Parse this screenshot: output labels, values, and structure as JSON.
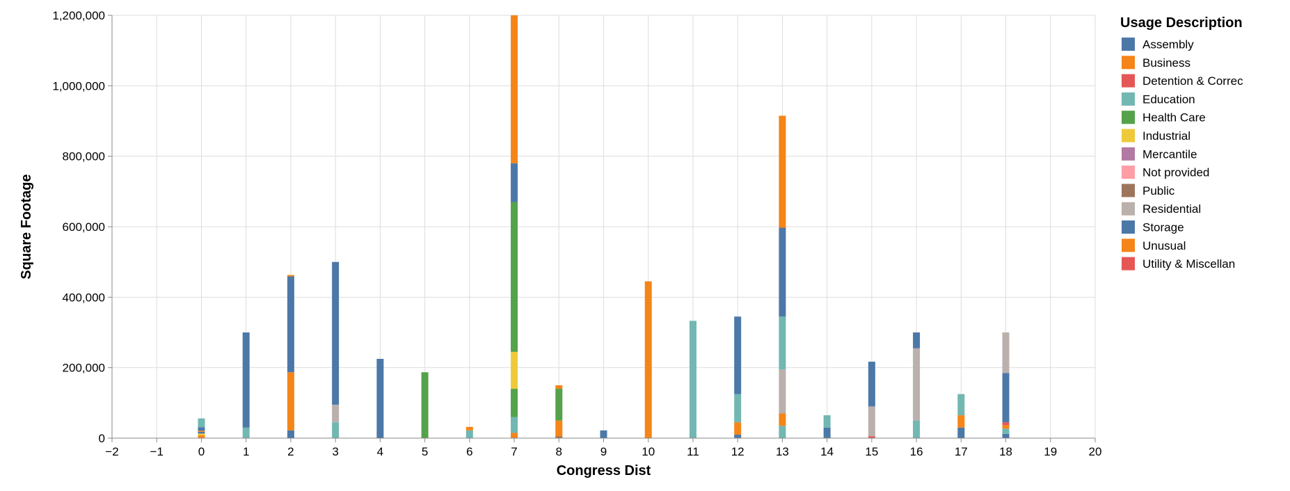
{
  "chart_data": {
    "type": "bar",
    "stacked": true,
    "title": "",
    "xlabel": "Congress Dist",
    "ylabel": "Square Footage",
    "xlim": [
      -2,
      20
    ],
    "ylim": [
      0,
      1200000
    ],
    "x_ticks": [
      -2,
      -1,
      0,
      1,
      2,
      3,
      4,
      5,
      6,
      7,
      8,
      9,
      10,
      11,
      12,
      13,
      14,
      15,
      16,
      17,
      18,
      19,
      20
    ],
    "x_tick_labels": [
      "−2",
      "−1",
      "0",
      "1",
      "2",
      "3",
      "4",
      "5",
      "6",
      "7",
      "8",
      "9",
      "10",
      "11",
      "12",
      "13",
      "14",
      "15",
      "16",
      "17",
      "18",
      "19",
      "20"
    ],
    "y_ticks": [
      0,
      200000,
      400000,
      600000,
      800000,
      1000000,
      1200000
    ],
    "y_tick_labels": [
      "0",
      "200,000",
      "400,000",
      "600,000",
      "800,000",
      "1,000,000",
      "1,200,000"
    ],
    "grid": true,
    "legend": {
      "title": "Usage Description",
      "position": "right",
      "entries": [
        {
          "name": "Assembly",
          "color": "#4c78a8"
        },
        {
          "name": "Business",
          "color": "#f58518"
        },
        {
          "name": "Detention & Correc",
          "color": "#e45756"
        },
        {
          "name": "Education",
          "color": "#72b7b2"
        },
        {
          "name": "Health Care",
          "color": "#54a24b"
        },
        {
          "name": "Industrial",
          "color": "#eeca3b"
        },
        {
          "name": "Mercantile",
          "color": "#b279a2"
        },
        {
          "name": "Not provided",
          "color": "#ff9da6"
        },
        {
          "name": "Public",
          "color": "#9d755d"
        },
        {
          "name": "Residential",
          "color": "#bab0ac"
        },
        {
          "name": "Storage",
          "color": "#4c78a8"
        },
        {
          "name": "Unusual",
          "color": "#f58518"
        },
        {
          "name": "Utility & Miscellan",
          "color": "#e45756"
        }
      ]
    },
    "bars": [
      {
        "x": 0,
        "segments": [
          {
            "category": "Business",
            "value": 8000
          },
          {
            "category": "Industrial",
            "value": 5000
          },
          {
            "category": "Assembly",
            "value": 5000
          },
          {
            "category": "Business",
            "value": 3000
          },
          {
            "category": "Storage",
            "value": 10000
          },
          {
            "category": "Education",
            "value": 25000
          }
        ]
      },
      {
        "x": 1,
        "segments": [
          {
            "category": "Education",
            "value": 30000
          },
          {
            "category": "Storage",
            "value": 270000
          }
        ]
      },
      {
        "x": 2,
        "segments": [
          {
            "category": "Storage",
            "value": 22000
          },
          {
            "category": "Business",
            "value": 165000
          },
          {
            "category": "Assembly",
            "value": 272000
          },
          {
            "category": "Unusual",
            "value": 4000
          }
        ]
      },
      {
        "x": 3,
        "segments": [
          {
            "category": "Education",
            "value": 45000
          },
          {
            "category": "Residential",
            "value": 50000
          },
          {
            "category": "Storage",
            "value": 405000
          }
        ]
      },
      {
        "x": 4,
        "segments": [
          {
            "category": "Storage",
            "value": 225000
          }
        ]
      },
      {
        "x": 5,
        "segments": [
          {
            "category": "Health Care",
            "value": 187000
          }
        ]
      },
      {
        "x": 6,
        "segments": [
          {
            "category": "Education",
            "value": 22000
          },
          {
            "category": "Unusual",
            "value": 10000
          }
        ]
      },
      {
        "x": 7,
        "segments": [
          {
            "category": "Business",
            "value": 15000
          },
          {
            "category": "Education",
            "value": 45000
          },
          {
            "category": "Health Care",
            "value": 80000
          },
          {
            "category": "Industrial",
            "value": 105000
          },
          {
            "category": "Health Care",
            "value": 425000
          },
          {
            "category": "Storage",
            "value": 110000
          },
          {
            "category": "Unusual",
            "value": 420000
          }
        ]
      },
      {
        "x": 8,
        "segments": [
          {
            "category": "Public",
            "value": 5000
          },
          {
            "category": "Business",
            "value": 45000
          },
          {
            "category": "Health Care",
            "value": 90000
          },
          {
            "category": "Unusual",
            "value": 10000
          }
        ]
      },
      {
        "x": 9,
        "segments": [
          {
            "category": "Storage",
            "value": 22000
          }
        ]
      },
      {
        "x": 10,
        "segments": [
          {
            "category": "Unusual",
            "value": 445000
          }
        ]
      },
      {
        "x": 11,
        "segments": [
          {
            "category": "Education",
            "value": 333000
          }
        ]
      },
      {
        "x": 12,
        "segments": [
          {
            "category": "Storage",
            "value": 10000
          },
          {
            "category": "Business",
            "value": 35000
          },
          {
            "category": "Education",
            "value": 80000
          },
          {
            "category": "Storage",
            "value": 220000
          }
        ]
      },
      {
        "x": 13,
        "segments": [
          {
            "category": "Education",
            "value": 35000
          },
          {
            "category": "Business",
            "value": 35000
          },
          {
            "category": "Residential",
            "value": 125000
          },
          {
            "category": "Education",
            "value": 150000
          },
          {
            "category": "Storage",
            "value": 252000
          },
          {
            "category": "Unusual",
            "value": 318000
          }
        ]
      },
      {
        "x": 14,
        "segments": [
          {
            "category": "Storage",
            "value": 30000
          },
          {
            "category": "Education",
            "value": 35000
          }
        ]
      },
      {
        "x": 15,
        "segments": [
          {
            "category": "Detention & Correc",
            "value": 5000
          },
          {
            "category": "Residential",
            "value": 85000
          },
          {
            "category": "Storage",
            "value": 127000
          }
        ]
      },
      {
        "x": 16,
        "segments": [
          {
            "category": "Education",
            "value": 50000
          },
          {
            "category": "Residential",
            "value": 205000
          },
          {
            "category": "Storage",
            "value": 45000
          }
        ]
      },
      {
        "x": 17,
        "segments": [
          {
            "category": "Storage",
            "value": 30000
          },
          {
            "category": "Business",
            "value": 35000
          },
          {
            "category": "Education",
            "value": 60000
          }
        ]
      },
      {
        "x": 18,
        "segments": [
          {
            "category": "Storage",
            "value": 12000
          },
          {
            "category": "Education",
            "value": 15000
          },
          {
            "category": "Business",
            "value": 10000
          },
          {
            "category": "Detention & Correc",
            "value": 8000
          },
          {
            "category": "Storage",
            "value": 140000
          },
          {
            "category": "Residential",
            "value": 115000
          }
        ]
      }
    ]
  }
}
